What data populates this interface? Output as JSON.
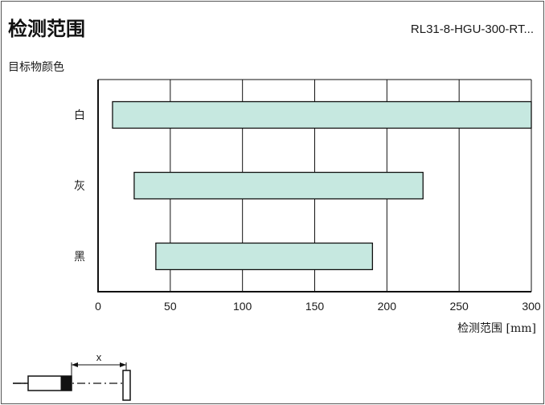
{
  "header": {
    "title": "检测范围",
    "model": "RL31-8-HGU-300-RT..."
  },
  "colors": {
    "bar_fill": "#c6e8e0",
    "stroke": "#111111"
  },
  "diagram": {
    "dimension_label": "x"
  },
  "chart_data": {
    "type": "bar",
    "orientation": "horizontal",
    "ylabel": "目标物颜色",
    "xlabel": "检测范围 [mm]",
    "xlim": [
      0,
      300
    ],
    "x_ticks": [
      0,
      50,
      100,
      150,
      200,
      250,
      300
    ],
    "grid": true,
    "categories": [
      "白",
      "灰",
      "黑"
    ],
    "ranges": [
      {
        "category": "白",
        "start": 10,
        "end": 300
      },
      {
        "category": "灰",
        "start": 25,
        "end": 225
      },
      {
        "category": "黑",
        "start": 40,
        "end": 190
      }
    ]
  }
}
